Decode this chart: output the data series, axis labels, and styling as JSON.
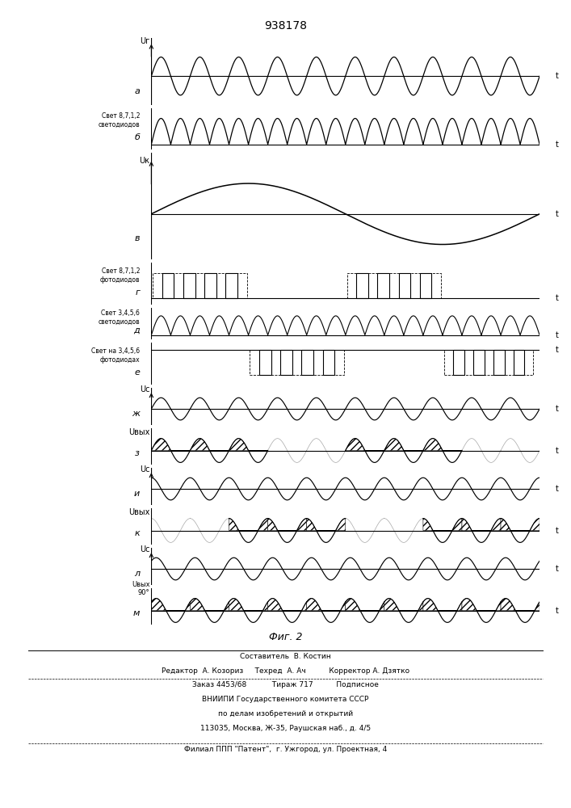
{
  "title": "938178",
  "fig_label": "Фиг. 2",
  "background_color": "#ffffff",
  "footer_lines": [
    "Составитель  В. Костин",
    "Редактор  А. Козориз     Техред  А. Ач          Корректор А. Дзятко",
    "Заказ 4453/68           Тираж 717          Подписное",
    "ВНИИПИ Государственного комитета СССР",
    "по делам изобретений и открытий",
    "113035, Москва, Ж-35, Раушская наб., д. 4/5",
    "Филиал ППП \"Патент\",  г. Ужгород, ул. Проектная, 4"
  ],
  "rows": [
    {
      "label": "а",
      "ylabel": "Uг",
      "left_label": "",
      "type": "sine_full",
      "freq": 10
    },
    {
      "label": "б",
      "ylabel": "",
      "left_label": "Свет 8,7,1,2\nсветодиодов",
      "type": "sine_rectified",
      "freq": 10
    },
    {
      "label": "в",
      "ylabel": "Uк",
      "left_label": "",
      "type": "sine_slow"
    },
    {
      "label": "г",
      "ylabel": "",
      "left_label": "Свет 8,7,1,2\nфотодиодов",
      "type": "pulse_dashed_groups"
    },
    {
      "label": "д",
      "ylabel": "",
      "left_label": "Свет 3,4,5,6\nсветодиодов",
      "type": "sine_rectified_small",
      "freq": 10
    },
    {
      "label": "е",
      "ylabel": "",
      "left_label": "Свет на 3,4,5,6\nфотодиодах",
      "type": "pulse_dashed_inv"
    },
    {
      "label": "ж",
      "ylabel": "Uс",
      "left_label": "",
      "type": "sine_full_small",
      "freq": 10,
      "phase": 0
    },
    {
      "label": "з",
      "ylabel": "Uвых",
      "left_label": "",
      "type": "sine_hatched_pos",
      "freq": 10,
      "phase": 0
    },
    {
      "label": "и",
      "ylabel": "Uс",
      "left_label": "",
      "type": "sine_full_small",
      "freq": 10,
      "phase": 0.5
    },
    {
      "label": "к",
      "ylabel": "Uвых",
      "left_label": "",
      "type": "sine_hatched_mixed",
      "freq": 10,
      "phase": 0.5
    },
    {
      "label": "л",
      "ylabel": "Uс",
      "left_label": "",
      "type": "sine_full_small",
      "freq": 10,
      "phase": 0.25
    },
    {
      "label": "м",
      "ylabel": "Uвых\n90°",
      "left_label": "",
      "type": "sine_hatched_90",
      "freq": 10,
      "phase": 0.25
    }
  ]
}
